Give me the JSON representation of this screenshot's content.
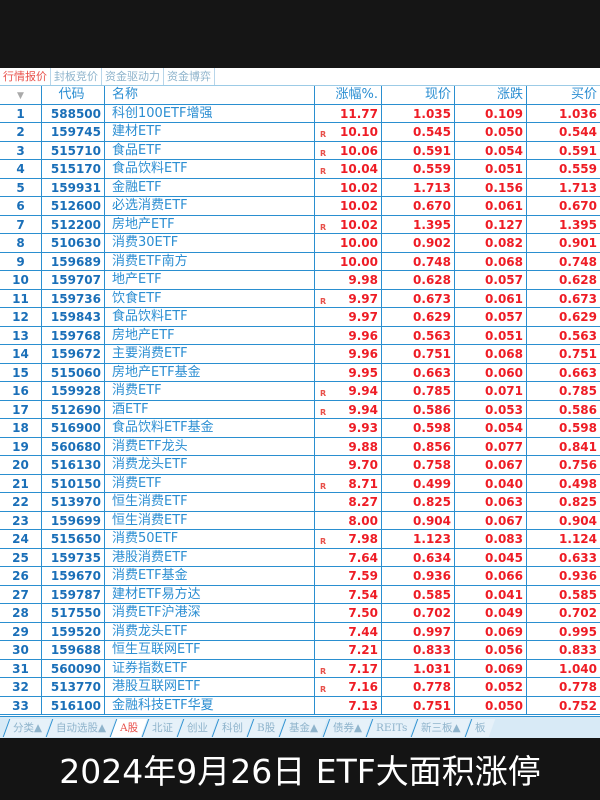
{
  "top_tabs": [
    {
      "label": "行情报价",
      "active": true
    },
    {
      "label": "封板竞价"
    },
    {
      "label": "资金驱动力"
    },
    {
      "label": "资金博弈"
    }
  ],
  "headers": {
    "sort": "▼",
    "code": "代码",
    "name": "名称",
    "pct": "涨幅%.",
    "price": "现价",
    "change": "涨跌",
    "buy": "买价"
  },
  "rows": [
    [
      "1",
      "588500",
      "科创100ETF增强",
      "",
      "11.77",
      "1.035",
      "0.109",
      "1.036"
    ],
    [
      "2",
      "159745",
      "建材ETF",
      "R",
      "10.10",
      "0.545",
      "0.050",
      "0.544"
    ],
    [
      "3",
      "515710",
      "食品ETF",
      "R",
      "10.06",
      "0.591",
      "0.054",
      "0.591"
    ],
    [
      "4",
      "515170",
      "食品饮料ETF",
      "R",
      "10.04",
      "0.559",
      "0.051",
      "0.559"
    ],
    [
      "5",
      "159931",
      "金融ETF",
      "",
      "10.02",
      "1.713",
      "0.156",
      "1.713"
    ],
    [
      "6",
      "512600",
      "必选消费ETF",
      "",
      "10.02",
      "0.670",
      "0.061",
      "0.670"
    ],
    [
      "7",
      "512200",
      "房地产ETF",
      "R",
      "10.02",
      "1.395",
      "0.127",
      "1.395"
    ],
    [
      "8",
      "510630",
      "消费30ETF",
      "",
      "10.00",
      "0.902",
      "0.082",
      "0.901"
    ],
    [
      "9",
      "159689",
      "消费ETF南方",
      "",
      "10.00",
      "0.748",
      "0.068",
      "0.748"
    ],
    [
      "10",
      "159707",
      "地产ETF",
      "",
      "9.98",
      "0.628",
      "0.057",
      "0.628"
    ],
    [
      "11",
      "159736",
      "饮食ETF",
      "R",
      "9.97",
      "0.673",
      "0.061",
      "0.673"
    ],
    [
      "12",
      "159843",
      "食品饮料ETF",
      "",
      "9.97",
      "0.629",
      "0.057",
      "0.629"
    ],
    [
      "13",
      "159768",
      "房地产ETF",
      "",
      "9.96",
      "0.563",
      "0.051",
      "0.563"
    ],
    [
      "14",
      "159672",
      "主要消费ETF",
      "",
      "9.96",
      "0.751",
      "0.068",
      "0.751"
    ],
    [
      "15",
      "515060",
      "房地产ETF基金",
      "",
      "9.95",
      "0.663",
      "0.060",
      "0.663"
    ],
    [
      "16",
      "159928",
      "消费ETF",
      "R",
      "9.94",
      "0.785",
      "0.071",
      "0.785"
    ],
    [
      "17",
      "512690",
      "酒ETF",
      "R",
      "9.94",
      "0.586",
      "0.053",
      "0.586"
    ],
    [
      "18",
      "516900",
      "食品饮料ETF基金",
      "",
      "9.93",
      "0.598",
      "0.054",
      "0.598"
    ],
    [
      "19",
      "560680",
      "消费ETF龙头",
      "",
      "9.88",
      "0.856",
      "0.077",
      "0.841"
    ],
    [
      "20",
      "516130",
      "消费龙头ETF",
      "",
      "9.70",
      "0.758",
      "0.067",
      "0.756"
    ],
    [
      "21",
      "510150",
      "消费ETF",
      "R",
      "8.71",
      "0.499",
      "0.040",
      "0.498"
    ],
    [
      "22",
      "513970",
      "恒生消费ETF",
      "",
      "8.27",
      "0.825",
      "0.063",
      "0.825"
    ],
    [
      "23",
      "159699",
      "恒生消费ETF",
      "",
      "8.00",
      "0.904",
      "0.067",
      "0.904"
    ],
    [
      "24",
      "515650",
      "消费50ETF",
      "R",
      "7.98",
      "1.123",
      "0.083",
      "1.124"
    ],
    [
      "25",
      "159735",
      "港股消费ETF",
      "",
      "7.64",
      "0.634",
      "0.045",
      "0.633"
    ],
    [
      "26",
      "159670",
      "消费ETF基金",
      "",
      "7.59",
      "0.936",
      "0.066",
      "0.936"
    ],
    [
      "27",
      "159787",
      "建材ETF易方达",
      "",
      "7.54",
      "0.585",
      "0.041",
      "0.585"
    ],
    [
      "28",
      "517550",
      "消费ETF沪港深",
      "",
      "7.50",
      "0.702",
      "0.049",
      "0.702"
    ],
    [
      "29",
      "159520",
      "消费龙头ETF",
      "",
      "7.44",
      "0.997",
      "0.069",
      "0.995"
    ],
    [
      "30",
      "159688",
      "恒生互联网ETF",
      "",
      "7.21",
      "0.833",
      "0.056",
      "0.833"
    ],
    [
      "31",
      "560090",
      "证券指数ETF",
      "R",
      "7.17",
      "1.031",
      "0.069",
      "1.040"
    ],
    [
      "32",
      "513770",
      "港股互联网ETF",
      "R",
      "7.16",
      "0.778",
      "0.052",
      "0.778"
    ],
    [
      "33",
      "516100",
      "金融科技ETF华夏",
      "",
      "7.13",
      "0.751",
      "0.050",
      "0.752"
    ]
  ],
  "bottom_tabs": [
    {
      "label": "分类▲"
    },
    {
      "label": "自动选股▲"
    },
    {
      "label": "A股",
      "active": true
    },
    {
      "label": "北证"
    },
    {
      "label": "创业"
    },
    {
      "label": "科创"
    },
    {
      "label": "B股"
    },
    {
      "label": "基金▲"
    },
    {
      "label": "债券▲"
    },
    {
      "label": "REITs"
    },
    {
      "label": "新三板▲"
    },
    {
      "label": "板"
    }
  ],
  "caption": "2024年9月26日 ETF大面积涨停",
  "colors": {
    "up": "#ee1c25",
    "grid": "#2a8fd0",
    "text": "#1a6fb8"
  }
}
